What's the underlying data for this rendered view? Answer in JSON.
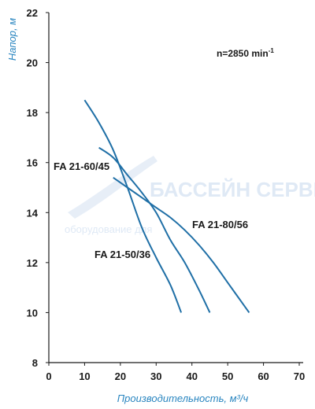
{
  "chart_data": {
    "type": "line",
    "title": "",
    "xlabel": "Производительность, м³/ч",
    "ylabel": "Напор, м",
    "xlim": [
      0,
      70
    ],
    "ylim": [
      8,
      22
    ],
    "xticks": [
      "0",
      "10",
      "20",
      "30",
      "40",
      "50",
      "60",
      "70"
    ],
    "yticks": [
      "8",
      "10",
      "12",
      "14",
      "16",
      "18",
      "20",
      "22"
    ],
    "grid": false,
    "annotation": "n=2850 min-1",
    "annotation_base": "n=2850 min",
    "annotation_sup": "-1",
    "series": [
      {
        "name": "FA 21-50/36",
        "color": "#1f6fa6",
        "points": [
          [
            10,
            18.5
          ],
          [
            14,
            17.6
          ],
          [
            18,
            16.5
          ],
          [
            22,
            15.0
          ],
          [
            26,
            13.4
          ],
          [
            30,
            12.2
          ],
          [
            34,
            11.1
          ],
          [
            37,
            10.0
          ]
        ]
      },
      {
        "name": "FA 21-60/45",
        "color": "#1f6fa6",
        "points": [
          [
            14,
            16.6
          ],
          [
            18,
            16.2
          ],
          [
            22,
            15.5
          ],
          [
            26,
            14.8
          ],
          [
            30,
            14.0
          ],
          [
            34,
            12.9
          ],
          [
            38,
            12.0
          ],
          [
            42,
            10.9
          ],
          [
            45,
            10.0
          ]
        ]
      },
      {
        "name": "FA 21-80/56",
        "color": "#1f6fa6",
        "points": [
          [
            18,
            15.4
          ],
          [
            22,
            15.0
          ],
          [
            26,
            14.6
          ],
          [
            30,
            14.2
          ],
          [
            34,
            13.8
          ],
          [
            38,
            13.3
          ],
          [
            42,
            12.7
          ],
          [
            46,
            12.0
          ],
          [
            50,
            11.2
          ],
          [
            53,
            10.6
          ],
          [
            56,
            10.0
          ]
        ]
      }
    ]
  },
  "watermark": {
    "title": "БАССЕЙН СЕРВИС",
    "subtitle": "оборудование для"
  }
}
